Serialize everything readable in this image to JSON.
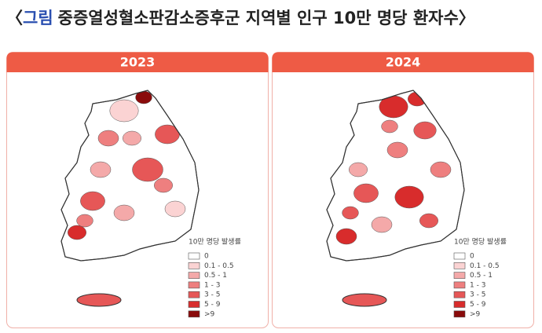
{
  "title": {
    "open": "〈",
    "highlight": "그림",
    "rest": "중증열성혈소판감소증후군 지역별 인구 10만 명당 환자수〉"
  },
  "panels": [
    {
      "year": "2023"
    },
    {
      "year": "2024"
    }
  ],
  "legend": {
    "title": "10만 명당 발생률",
    "items": [
      {
        "label": "0",
        "color": "#ffffff"
      },
      {
        "label": "0.1 - 0.5",
        "color": "#fbd3d3"
      },
      {
        "label": "0.5 - 1",
        "color": "#f4a9a9"
      },
      {
        "label": "1 - 3",
        "color": "#ee7f7f"
      },
      {
        "label": "3 - 5",
        "color": "#e65757"
      },
      {
        "label": "5 - 9",
        "color": "#d82c2c"
      },
      {
        "label": ">9",
        "color": "#8a0b0b"
      }
    ]
  }
}
